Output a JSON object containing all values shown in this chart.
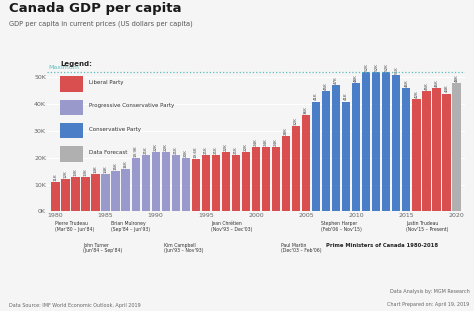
{
  "title": "Canada GDP per capita",
  "subtitle": "GDP per capita in current prices (US dollars per capita)",
  "years": [
    1980,
    1981,
    1982,
    1983,
    1984,
    1985,
    1986,
    1987,
    1988,
    1989,
    1990,
    1991,
    1992,
    1993,
    1994,
    1995,
    1996,
    1997,
    1998,
    1999,
    2000,
    2001,
    2002,
    2003,
    2004,
    2005,
    2006,
    2007,
    2008,
    2009,
    2010,
    2011,
    2012,
    2013,
    2014,
    2015,
    2016,
    2017,
    2018,
    2019,
    2020
  ],
  "values": [
    11000,
    12000,
    13000,
    13000,
    14000,
    14000,
    15000,
    16000,
    19900,
    21000,
    22000,
    22000,
    21000,
    20000,
    19600,
    21000,
    21000,
    22000,
    21000,
    22000,
    24000,
    24000,
    24000,
    28000,
    32000,
    36000,
    41000,
    45000,
    47000,
    41000,
    48000,
    52000,
    52000,
    52000,
    51000,
    46000,
    42000,
    45000,
    46000,
    44000,
    48000
  ],
  "colors": [
    "#d94f4f",
    "#d94f4f",
    "#d94f4f",
    "#d94f4f",
    "#d94f4f",
    "#9999cc",
    "#9999cc",
    "#9999cc",
    "#9999cc",
    "#9999cc",
    "#9999cc",
    "#9999cc",
    "#9999cc",
    "#9999cc",
    "#d94f4f",
    "#d94f4f",
    "#d94f4f",
    "#d94f4f",
    "#d94f4f",
    "#d94f4f",
    "#d94f4f",
    "#d94f4f",
    "#d94f4f",
    "#d94f4f",
    "#d94f4f",
    "#d94f4f",
    "#4a7ec7",
    "#4a7ec7",
    "#4a7ec7",
    "#4a7ec7",
    "#4a7ec7",
    "#4a7ec7",
    "#4a7ec7",
    "#4a7ec7",
    "#4a7ec7",
    "#4a7ec7",
    "#d94f4f",
    "#d94f4f",
    "#d94f4f",
    "#d94f4f",
    "#b0b0b0"
  ],
  "bar_labels": [
    "11K",
    "12K",
    "13K",
    "13K",
    "14K",
    "14K",
    "15K",
    "16K",
    "19.9K",
    "21K",
    "22K",
    "22K",
    "21K",
    "20K",
    "19.6K",
    "21K",
    "21K",
    "22K",
    "21K",
    "22K",
    "24K",
    "24K",
    "24K",
    "28K",
    "32K",
    "36K",
    "41K",
    "45K",
    "47K",
    "41K",
    "48K",
    "52K",
    "52K",
    "52K",
    "51K",
    "46K",
    "42K",
    "45K",
    "46K",
    "44K",
    "48K"
  ],
  "maximum_value": 52000,
  "ylim": [
    0,
    58000
  ],
  "yticks": [
    0,
    10000,
    20000,
    30000,
    40000,
    50000
  ],
  "ytick_labels": [
    "0K",
    "10K",
    "20K",
    "30K",
    "40K",
    "50K"
  ],
  "color_liberal": "#d94f4f",
  "color_prog_cons": "#9999cc",
  "color_cons": "#4a7ec7",
  "color_forecast": "#b0b0b0",
  "color_maximum_line": "#5bbcbc",
  "legend_items": [
    [
      "#d94f4f",
      "Liberal Party"
    ],
    [
      "#9999cc",
      "Progressive Conservative Party"
    ],
    [
      "#4a7ec7",
      "Conservative Party"
    ],
    [
      "#b0b0b0",
      "Data Forecast"
    ]
  ],
  "x_major_ticks": [
    1980,
    1985,
    1990,
    1995,
    2000,
    2005,
    2010,
    2015,
    2020
  ],
  "pm_labels": [
    {
      "x": 1980.0,
      "row": 0,
      "text": "Pierre Trudeau\n(Mar'80 – Jun'84)"
    },
    {
      "x": 1982.8,
      "row": 1,
      "text": "John Turner\n(Jun'84 – Sep'84)"
    },
    {
      "x": 1985.5,
      "row": 0,
      "text": "Brian Mulroney\n(Sep'84 – Jun'93)"
    },
    {
      "x": 1990.8,
      "row": 1,
      "text": "Kim Campbell\n(Jun'93 – Nov'93)"
    },
    {
      "x": 1995.5,
      "row": 0,
      "text": "Jean Chrétien\n(Nov'93 – Dec'03)"
    },
    {
      "x": 2002.5,
      "row": 1,
      "text": "Paul Martin\n(Dec'03 – Feb'06)"
    },
    {
      "x": 2006.5,
      "row": 0,
      "text": "Stephen Harper\n(Feb'06 – Nov'15)"
    },
    {
      "x": 2015.0,
      "row": 0,
      "text": "Justin Trudeau\n(Nov'15 – Present)"
    }
  ],
  "pm_bold_label": "Prime Ministers of Canada 1980-2018",
  "pm_bold_x": 2007.0,
  "footer_left": "Data Source: IMF World Economic Outlook, April 2019",
  "footer_right1": "Data Analysis by: MGM Research",
  "footer_right2": "Chart Prepared on: April 19, 2019",
  "background_color": "#f5f5f5"
}
